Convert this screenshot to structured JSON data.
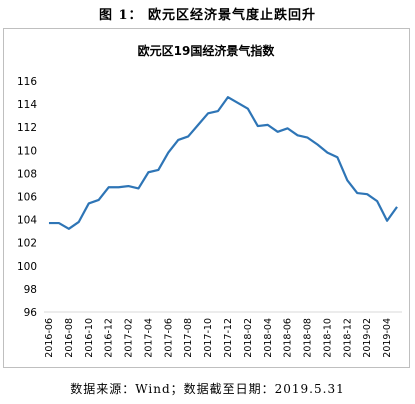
{
  "figure": {
    "caption": "图 1： 欧元区经济景气度止跌回升",
    "source": "数据来源：Wind；数据截至日期：2019.5.31"
  },
  "chart_data": {
    "type": "line",
    "title": "欧元区19国经济景气指数",
    "xlabel": "",
    "ylabel": "",
    "ylim": [
      96,
      116
    ],
    "yticks": [
      96,
      98,
      100,
      102,
      104,
      106,
      108,
      110,
      112,
      114,
      116
    ],
    "grid": false,
    "legend": "none",
    "line_color": "#2e75b6",
    "x": [
      "2016-06",
      "2016-07",
      "2016-08",
      "2016-09",
      "2016-10",
      "2016-11",
      "2016-12",
      "2017-01",
      "2017-02",
      "2017-03",
      "2017-04",
      "2017-05",
      "2017-06",
      "2017-07",
      "2017-08",
      "2017-09",
      "2017-10",
      "2017-11",
      "2017-12",
      "2018-01",
      "2018-02",
      "2018-03",
      "2018-04",
      "2018-05",
      "2018-06",
      "2018-07",
      "2018-08",
      "2018-09",
      "2018-10",
      "2018-11",
      "2018-12",
      "2019-01",
      "2019-02",
      "2019-03",
      "2019-04",
      "2019-05"
    ],
    "xtick_labels": [
      "2016-06",
      "2016-08",
      "2016-10",
      "2016-12",
      "2017-02",
      "2017-04",
      "2017-06",
      "2017-08",
      "2017-10",
      "2017-12",
      "2018-02",
      "2018-04",
      "2018-06",
      "2018-08",
      "2018-10",
      "2018-12",
      "2019-02",
      "2019-04"
    ],
    "series": [
      {
        "values": [
          103.7,
          103.7,
          103.2,
          103.8,
          105.4,
          105.7,
          106.8,
          106.8,
          106.9,
          106.7,
          108.1,
          108.3,
          109.8,
          110.9,
          111.2,
          112.2,
          113.2,
          113.4,
          114.6,
          114.1,
          113.6,
          112.1,
          112.2,
          111.6,
          111.9,
          111.3,
          111.1,
          110.5,
          109.8,
          109.4,
          107.4,
          106.3,
          106.2,
          105.6,
          103.9,
          105.1
        ]
      }
    ]
  }
}
